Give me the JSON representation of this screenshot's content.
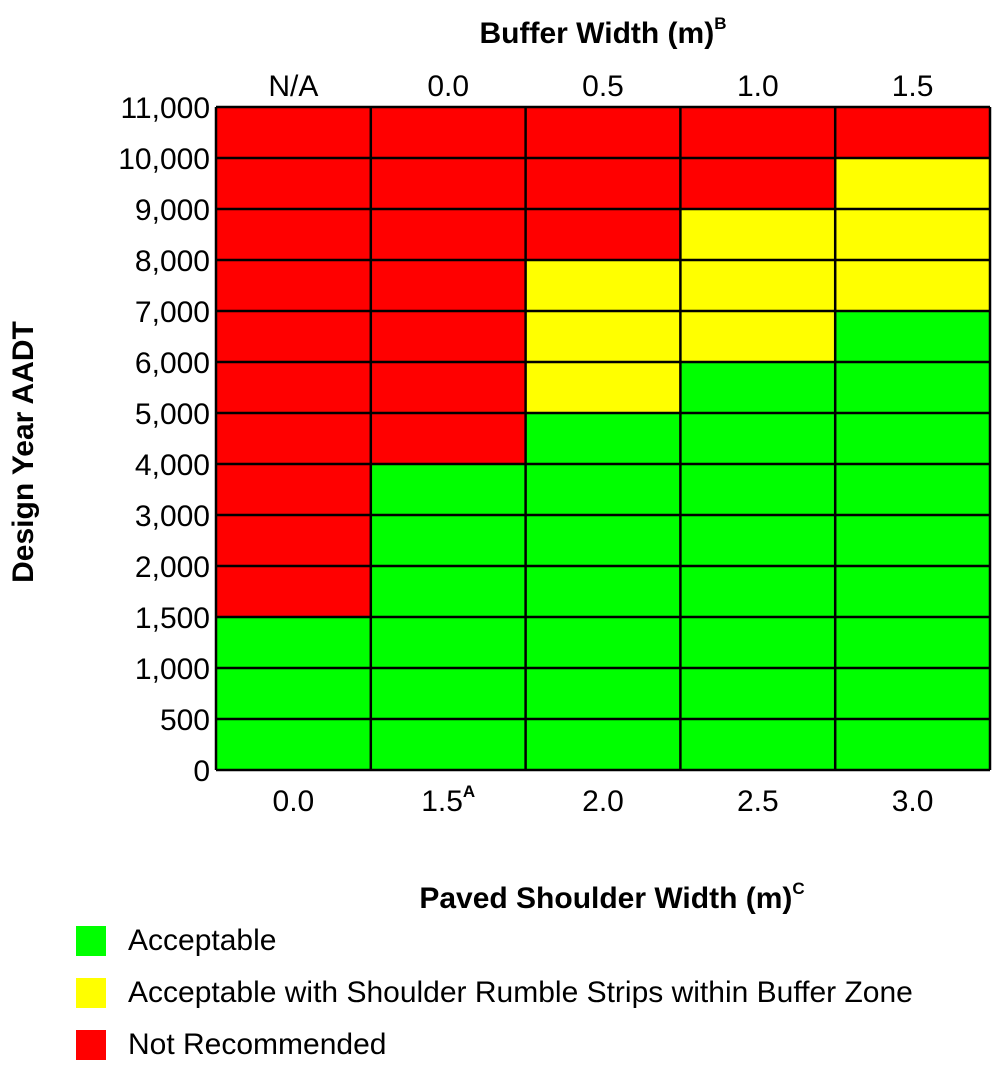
{
  "colors": {
    "acceptable": "#00ff00",
    "rumble": "#ffff00",
    "not_recommended": "#ff0000",
    "grid": "#000000"
  },
  "chart_data": {
    "type": "heatmap",
    "top_axis": {
      "title": "Buffer Width (m)",
      "title_superscript": "B",
      "categories": [
        "N/A",
        "0.0",
        "0.5",
        "1.0",
        "1.5"
      ]
    },
    "x_axis": {
      "title": "Paved Shoulder Width (m)",
      "title_superscript": "C",
      "categories": [
        {
          "label": "0.0",
          "sup": ""
        },
        {
          "label": "1.5",
          "sup": "A"
        },
        {
          "label": "2.0",
          "sup": ""
        },
        {
          "label": "2.5",
          "sup": ""
        },
        {
          "label": "3.0",
          "sup": ""
        }
      ]
    },
    "y_axis": {
      "title": "Design Year AADT",
      "ticks": [
        "0",
        "500",
        "1,000",
        "1,500",
        "2,000",
        "3,000",
        "4,000",
        "5,000",
        "6,000",
        "7,000",
        "8,000",
        "9,000",
        "10,000",
        "11,000"
      ]
    },
    "row_bands": [
      {
        "from": "0",
        "to": "500",
        "cells": [
          "acceptable",
          "acceptable",
          "acceptable",
          "acceptable",
          "acceptable"
        ]
      },
      {
        "from": "500",
        "to": "1,000",
        "cells": [
          "acceptable",
          "acceptable",
          "acceptable",
          "acceptable",
          "acceptable"
        ]
      },
      {
        "from": "1,000",
        "to": "1,500",
        "cells": [
          "acceptable",
          "acceptable",
          "acceptable",
          "acceptable",
          "acceptable"
        ]
      },
      {
        "from": "1,500",
        "to": "2,000",
        "cells": [
          "not_recommended",
          "acceptable",
          "acceptable",
          "acceptable",
          "acceptable"
        ]
      },
      {
        "from": "2,000",
        "to": "3,000",
        "cells": [
          "not_recommended",
          "acceptable",
          "acceptable",
          "acceptable",
          "acceptable"
        ]
      },
      {
        "from": "3,000",
        "to": "4,000",
        "cells": [
          "not_recommended",
          "acceptable",
          "acceptable",
          "acceptable",
          "acceptable"
        ]
      },
      {
        "from": "4,000",
        "to": "5,000",
        "cells": [
          "not_recommended",
          "not_recommended",
          "acceptable",
          "acceptable",
          "acceptable"
        ]
      },
      {
        "from": "5,000",
        "to": "6,000",
        "cells": [
          "not_recommended",
          "not_recommended",
          "rumble",
          "acceptable",
          "acceptable"
        ]
      },
      {
        "from": "6,000",
        "to": "7,000",
        "cells": [
          "not_recommended",
          "not_recommended",
          "rumble",
          "rumble",
          "acceptable"
        ]
      },
      {
        "from": "7,000",
        "to": "8,000",
        "cells": [
          "not_recommended",
          "not_recommended",
          "rumble",
          "rumble",
          "rumble"
        ]
      },
      {
        "from": "8,000",
        "to": "9,000",
        "cells": [
          "not_recommended",
          "not_recommended",
          "not_recommended",
          "rumble",
          "rumble"
        ]
      },
      {
        "from": "9,000",
        "to": "10,000",
        "cells": [
          "not_recommended",
          "not_recommended",
          "not_recommended",
          "not_recommended",
          "rumble"
        ]
      },
      {
        "from": "10,000",
        "to": "11,000",
        "cells": [
          "not_recommended",
          "not_recommended",
          "not_recommended",
          "not_recommended",
          "not_recommended"
        ]
      }
    ],
    "legend": [
      {
        "key": "acceptable",
        "label": "Acceptable"
      },
      {
        "key": "rumble",
        "label": "Acceptable with Shoulder Rumble Strips within Buffer Zone"
      },
      {
        "key": "not_recommended",
        "label": "Not Recommended"
      }
    ],
    "legend_placement": "bottom-left"
  }
}
